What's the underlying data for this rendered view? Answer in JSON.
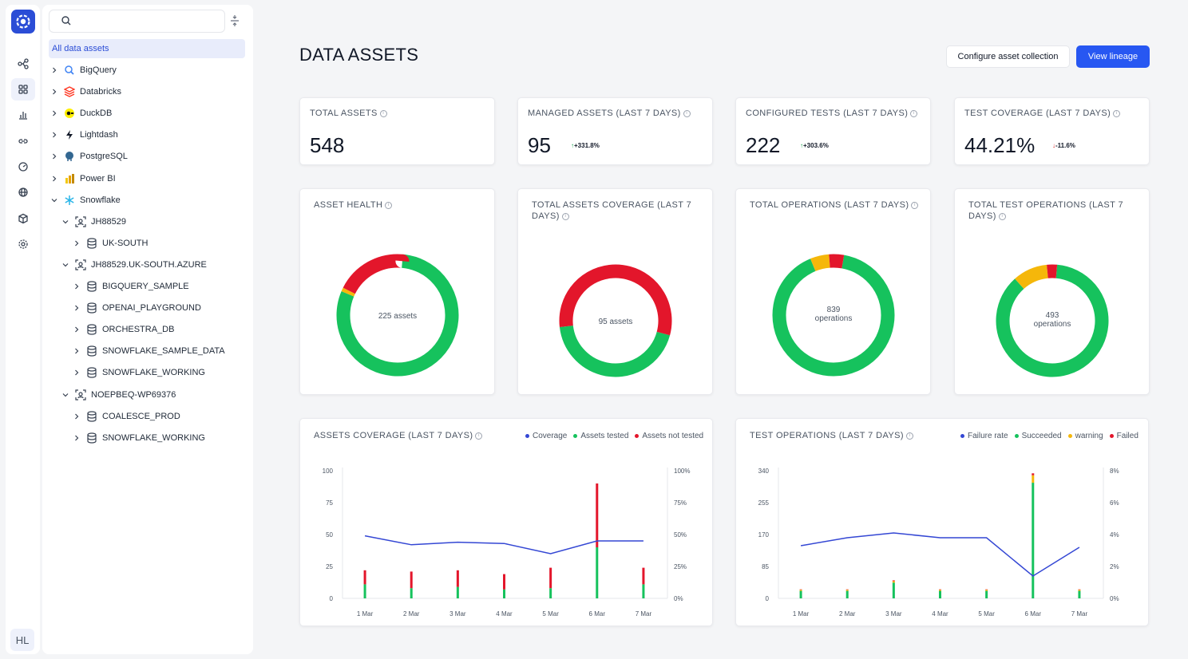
{
  "rail": {
    "avatar": "HL"
  },
  "tree": {
    "search_placeholder": "",
    "all_label": "All data assets",
    "items": [
      {
        "label": "BigQuery",
        "icon": "bigquery-icon",
        "color": "#4285f4"
      },
      {
        "label": "Databricks",
        "icon": "databricks-icon",
        "color": "#ff3621"
      },
      {
        "label": "DuckDB",
        "icon": "duckdb-icon",
        "color": "#fff000"
      },
      {
        "label": "Lightdash",
        "icon": "lightdash-icon",
        "color": "#111827"
      },
      {
        "label": "PostgreSQL",
        "icon": "postgresql-icon",
        "color": "#336791"
      },
      {
        "label": "Power BI",
        "icon": "powerbi-icon",
        "color": "#f2c811"
      },
      {
        "label": "Snowflake",
        "icon": "snowflake-icon",
        "color": "#29b5e8"
      },
      {
        "label": "JH88529"
      },
      {
        "label": "UK-SOUTH"
      },
      {
        "label": "JH88529.UK-SOUTH.AZURE"
      },
      {
        "label": "BIGQUERY_SAMPLE"
      },
      {
        "label": "OPENAI_PLAYGROUND"
      },
      {
        "label": "ORCHESTRA_DB"
      },
      {
        "label": "SNOWFLAKE_SAMPLE_DATA"
      },
      {
        "label": "SNOWFLAKE_WORKING"
      },
      {
        "label": "NOEPBEQ-WP69376"
      },
      {
        "label": "COALESCE_PROD"
      },
      {
        "label": "SNOWFLAKE_WORKING"
      }
    ]
  },
  "header": {
    "title": "DATA ASSETS",
    "configure_label": "Configure asset collection",
    "lineage_label": "View lineage"
  },
  "stats": [
    {
      "label": "TOTAL ASSETS",
      "value": "548",
      "delta": ""
    },
    {
      "label": "MANAGED ASSETS (LAST 7 DAYS)",
      "value": "95",
      "arrow": "↑",
      "delta": "+331.8%"
    },
    {
      "label": "CONFIGURED TESTS (LAST 7 DAYS)",
      "value": "222",
      "arrow": "↑",
      "delta": "+303.6%"
    },
    {
      "label": "TEST COVERAGE (LAST 7 DAYS)",
      "value": "44.21%",
      "arrow": "↓",
      "delta": "-11.6%"
    }
  ],
  "colors": {
    "green": "#16c25d",
    "red": "#e3162b",
    "yellow": "#f5b70a",
    "blue": "#3447d4"
  },
  "donuts": [
    {
      "title1": "ASSET HEALTH",
      "title2": "",
      "center1": "225 assets",
      "center2": "",
      "green": 0.8,
      "yellow": 0.01,
      "red": 0.19
    },
    {
      "title1": "TOTAL ASSETS COVERAGE (LAST 7",
      "title2": "DAYS)",
      "center1": "95 assets",
      "center2": "",
      "green": 0.44,
      "yellow": 0.0,
      "red": 0.56
    },
    {
      "title1": "TOTAL OPERATIONS (LAST 7 DAYS)",
      "title2": "",
      "center1": "839",
      "center2": "operations",
      "green": 0.91,
      "yellow": 0.05,
      "red": 0.04
    },
    {
      "title1": "TOTAL TEST OPERATIONS (LAST 7",
      "title2": "DAYS)",
      "center1": "493",
      "center2": "operations",
      "green": 0.87,
      "yellow": 0.1,
      "red": 0.03
    }
  ],
  "chart_data": [
    {
      "type": "bar",
      "title": "ASSETS COVERAGE (LAST 7 DAYS)",
      "categories": [
        "1 Mar",
        "2 Mar",
        "3 Mar",
        "4 Mar",
        "5 Mar",
        "6 Mar",
        "7 Mar"
      ],
      "left_ticks": [
        "100",
        "75",
        "50",
        "25",
        "0"
      ],
      "right_ticks": [
        "100%",
        "75%",
        "50%",
        "25%",
        "0%"
      ],
      "ylim": [
        0,
        100
      ],
      "y2lim": [
        0,
        100
      ],
      "legend": [
        "Coverage",
        "Assets tested",
        "Assets not tested"
      ],
      "series": [
        {
          "name": "Assets tested",
          "color": "green",
          "values": [
            11,
            8,
            9,
            7,
            8,
            40,
            11
          ]
        },
        {
          "name": "Assets not tested",
          "color": "red",
          "values": [
            11,
            13,
            13,
            12,
            16,
            50,
            13
          ]
        },
        {
          "name": "Coverage",
          "color": "blue",
          "line": true,
          "values": [
            49,
            42,
            44,
            43,
            35,
            45,
            45
          ]
        }
      ]
    },
    {
      "type": "bar",
      "title": "TEST OPERATIONS (LAST 7 DAYS)",
      "categories": [
        "1 Mar",
        "2 Mar",
        "3 Mar",
        "4 Mar",
        "5 Mar",
        "6 Mar",
        "7 Mar"
      ],
      "left_ticks": [
        "340",
        "255",
        "170",
        "85",
        "0"
      ],
      "right_ticks": [
        "8%",
        "6%",
        "4%",
        "2%",
        "0%"
      ],
      "ylim": [
        0,
        340
      ],
      "y2lim": [
        0,
        8
      ],
      "legend": [
        "Failure rate",
        "Succeeded",
        "warning",
        "Failed"
      ],
      "series": [
        {
          "name": "Succeeded",
          "color": "green",
          "values": [
            20,
            20,
            42,
            20,
            20,
            308,
            20
          ]
        },
        {
          "name": "warning",
          "color": "yellow",
          "values": [
            3,
            3,
            4,
            3,
            3,
            20,
            3
          ]
        },
        {
          "name": "Failed",
          "color": "red",
          "values": [
            1,
            1,
            2,
            1,
            1,
            5,
            1
          ]
        },
        {
          "name": "Failure rate",
          "color": "blue",
          "line": true,
          "values": [
            3.3,
            3.8,
            4.1,
            3.8,
            3.8,
            1.4,
            3.2
          ]
        }
      ]
    }
  ]
}
